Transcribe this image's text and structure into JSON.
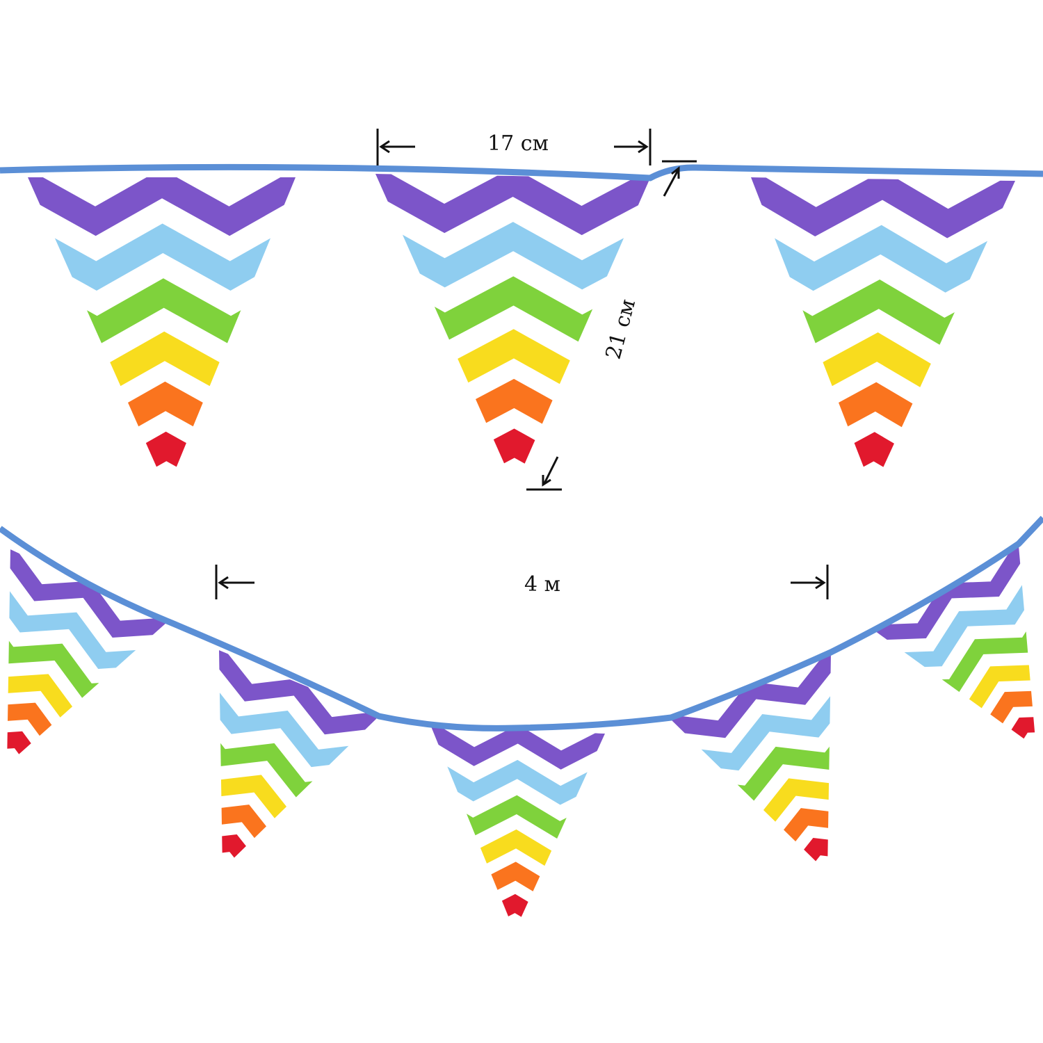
{
  "dimensions": {
    "flag_width": "17 см",
    "flag_height": "21 см",
    "total_length": "4 м"
  },
  "colors": {
    "cord": "#5b8fd6",
    "stripes": [
      "#7c55c9",
      "#8fcdf0",
      "#7fd23c",
      "#f8dc1e",
      "#fa741e",
      "#e1192d"
    ],
    "background": "#ffffff",
    "annotation": "#111111"
  },
  "flag_pattern": "rainbow-chevron",
  "flags_top_row": 3,
  "flags_bottom_row": 5
}
